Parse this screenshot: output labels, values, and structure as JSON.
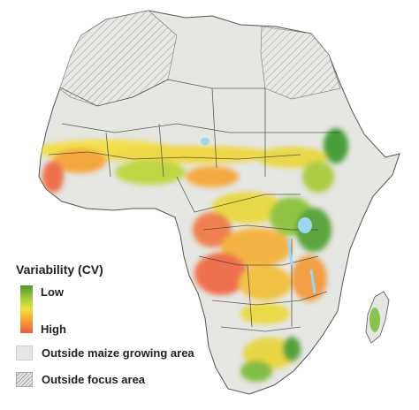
{
  "legend": {
    "title": "Variability (CV)",
    "low_label": "Low",
    "high_label": "High",
    "outside_maize_label": "Outside maize growing area",
    "outside_focus_label": "Outside focus area"
  },
  "colors": {
    "low": "#4a9a30",
    "mid": "#f0e040",
    "high": "#ef5a45",
    "outside_maize": "#e6e6e2",
    "outside_focus_hatch": "#9b9b9b",
    "water": "#9ed6ee",
    "border": "#3a3a3a"
  }
}
